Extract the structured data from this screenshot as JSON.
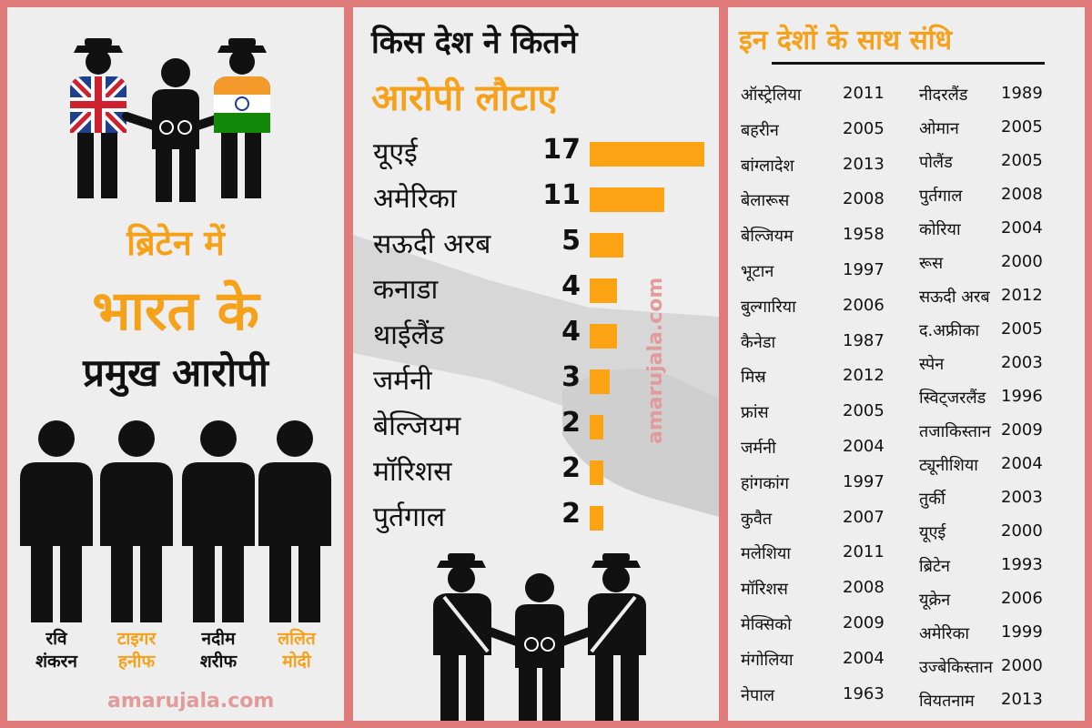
{
  "left": {
    "headline": [
      "ब्रिटेन में",
      "भारत के",
      "प्रमुख आरोपी"
    ],
    "people": [
      {
        "line1": "रवि",
        "line2": "शंकरन",
        "color": "#111111"
      },
      {
        "line1": "टाइगर",
        "line2": "हनीफ",
        "color": "#f5a21a"
      },
      {
        "line1": "नदीम",
        "line2": "शरीफ",
        "color": "#111111"
      },
      {
        "line1": "ललित",
        "line2": "मोदी",
        "color": "#f5a21a"
      }
    ],
    "watermark": "amarujala.com"
  },
  "middle": {
    "watermark": "amarujala.com"
  },
  "chart_data": {
    "type": "bar",
    "title": "किस देश ने कितने",
    "subtitle": "आरोपी लौटाए",
    "categories": [
      "यूएई",
      "अमेरिका",
      "सऊदी अरब",
      "कनाडा",
      "थाईलैंड",
      "जर्मनी",
      "बेल्जियम",
      "मॉरिशस",
      "पुर्तगाल"
    ],
    "values": [
      17,
      11,
      5,
      4,
      4,
      3,
      2,
      2,
      2
    ],
    "xlim": [
      0,
      17
    ],
    "bar_color": "#fca313",
    "grid": false
  },
  "right": {
    "title": "इन देशों के साथ संधि",
    "col1": [
      {
        "country": "ऑस्ट्रेलिया",
        "year": "2011"
      },
      {
        "country": "बहरीन",
        "year": "2005"
      },
      {
        "country": "बांग्लादेश",
        "year": "2013"
      },
      {
        "country": "बेलारूस",
        "year": "2008"
      },
      {
        "country": "बेल्जियम",
        "year": "1958"
      },
      {
        "country": "भूटान",
        "year": "1997"
      },
      {
        "country": "बुल्गारिया",
        "year": "2006"
      },
      {
        "country": "कैनेडा",
        "year": "1987"
      },
      {
        "country": "मिस्र",
        "year": "2012"
      },
      {
        "country": "फ्रांस",
        "year": "2005"
      },
      {
        "country": "जर्मनी",
        "year": "2004"
      },
      {
        "country": "हांगकांग",
        "year": "1997"
      },
      {
        "country": "कुवैत",
        "year": "2007"
      },
      {
        "country": "मलेशिया",
        "year": "2011"
      },
      {
        "country": "मॉरिशस",
        "year": "2008"
      },
      {
        "country": "मेक्सिको",
        "year": "2009"
      },
      {
        "country": "मंगोलिया",
        "year": "2004"
      },
      {
        "country": "नेपाल",
        "year": "1963"
      }
    ],
    "col2": [
      {
        "country": "नीदरलैंड",
        "year": "1989"
      },
      {
        "country": "ओमान",
        "year": "2005"
      },
      {
        "country": "पोलैंड",
        "year": "2005"
      },
      {
        "country": "पुर्तगाल",
        "year": "2008"
      },
      {
        "country": "कोरिया",
        "year": "2004"
      },
      {
        "country": "रूस",
        "year": "2000"
      },
      {
        "country": "सऊदी अरब",
        "year": "2012"
      },
      {
        "country": "द.अफ्रीका",
        "year": "2005"
      },
      {
        "country": "स्पेन",
        "year": "2003"
      },
      {
        "country": "स्विट्जरलैंड",
        "year": "1996"
      },
      {
        "country": "तजाकिस्तान",
        "year": "2009"
      },
      {
        "country": "ट्यूनीशिया",
        "year": "2004"
      },
      {
        "country": "तुर्की",
        "year": "2003"
      },
      {
        "country": "यूएई",
        "year": "2000"
      },
      {
        "country": "ब्रिटेन",
        "year": "1993"
      },
      {
        "country": "यूक्रेन",
        "year": "2006"
      },
      {
        "country": "अमेरिका",
        "year": "1999"
      },
      {
        "country": "उज्बेकिस्तान",
        "year": "2000"
      },
      {
        "country": "वियतनाम",
        "year": "2013"
      }
    ]
  }
}
